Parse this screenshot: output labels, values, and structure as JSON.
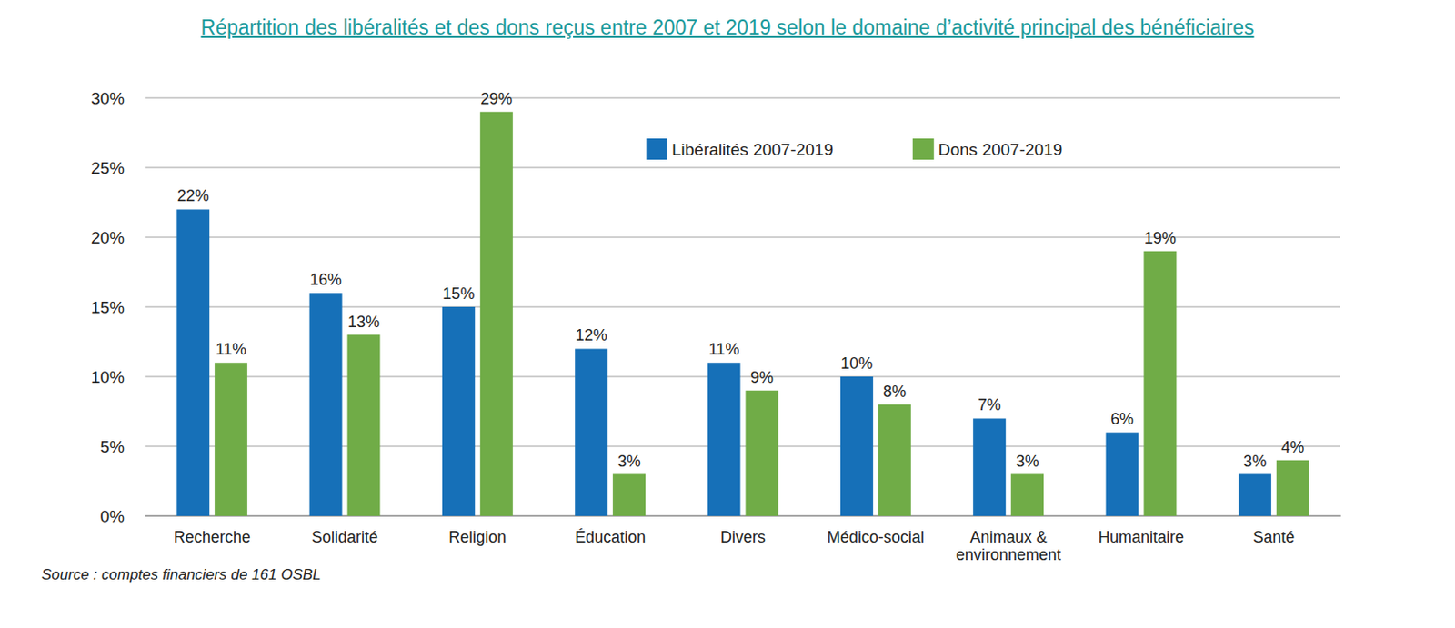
{
  "chart_data": {
    "type": "bar",
    "title": "Répartition des libéralités et des dons reçus entre 2007 et 2019 selon le domaine d’activité principal des bénéficiaires",
    "source": "Source : comptes financiers de 161 OSBL",
    "categories": [
      "Recherche",
      "Solidarité",
      "Religion",
      "Éducation",
      "Divers",
      "Médico-social",
      "Animaux &\nenvironnement",
      "Humanitaire",
      "Santé"
    ],
    "series": [
      {
        "name": "Libéralités 2007-2019",
        "color": "#1670b8",
        "values": [
          22,
          16,
          15,
          12,
          11,
          10,
          7,
          6,
          3
        ],
        "value_labels": [
          "22%",
          "16%",
          "15%",
          "12%",
          "11%",
          "10%",
          "7%",
          "6%",
          "3%"
        ]
      },
      {
        "name": "Dons 2007-2019",
        "color": "#70ac47",
        "values": [
          11,
          13,
          29,
          3,
          9,
          8,
          3,
          19,
          4
        ],
        "value_labels": [
          "11%",
          "13%",
          "29%",
          "3%",
          "9%",
          "8%",
          "3%",
          "19%",
          "4%"
        ]
      }
    ],
    "ylim": [
      0,
      30
    ],
    "yticks": [
      {
        "value": 0,
        "label": "0%"
      },
      {
        "value": 5,
        "label": "5%"
      },
      {
        "value": 10,
        "label": "10%"
      },
      {
        "value": 15,
        "label": "15%"
      },
      {
        "value": 20,
        "label": "20%"
      },
      {
        "value": 25,
        "label": "25%"
      },
      {
        "value": 30,
        "label": "30%"
      }
    ],
    "grid": true,
    "legend": "top",
    "data_labels": true
  }
}
